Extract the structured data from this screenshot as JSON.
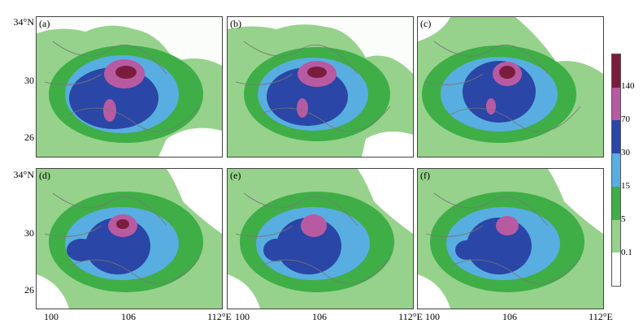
{
  "panels": [
    {
      "label": "(a)"
    },
    {
      "label": "(b)"
    },
    {
      "label": "(c)"
    },
    {
      "label": "(d)"
    },
    {
      "label": "(e)"
    },
    {
      "label": "(f)"
    }
  ],
  "y_ticks_top": [
    "34°N",
    "30",
    "26"
  ],
  "y_ticks_bottom": [
    "34°N",
    "30",
    "26"
  ],
  "x_ticks": [
    "100",
    "106",
    "112°E"
  ],
  "colorbar": {
    "labels": [
      "140",
      "70",
      "30",
      "15",
      "5",
      "0.1"
    ],
    "colors": [
      "#7a1d3c",
      "#b85aa2",
      "#2a46a6",
      "#58aee0",
      "#3fae47",
      "#96d28b",
      "#ffffff"
    ]
  }
}
